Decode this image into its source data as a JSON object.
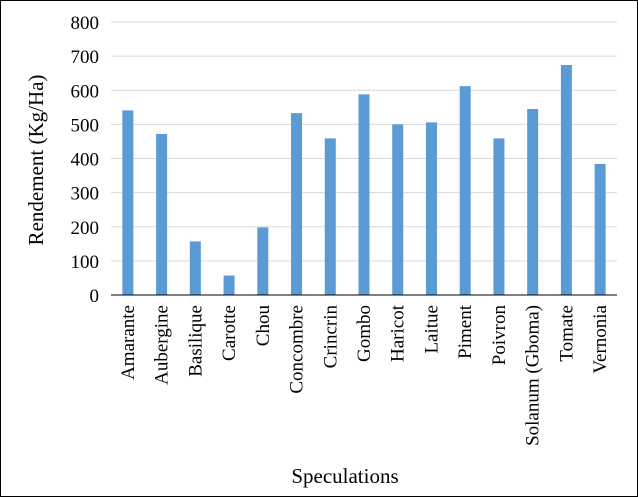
{
  "chart_data": {
    "type": "bar",
    "title": "",
    "xlabel": "Speculations",
    "ylabel": "Rendement (Kg/Ha)",
    "categories": [
      "Amarante",
      "Aubergine",
      "Basilique",
      "Carotte",
      "Chou",
      "Concombre",
      "Crincrin",
      "Gombo",
      "Haricot",
      "Laitue",
      "Piment",
      "Poivron",
      "Solanum (Gboma)",
      "Tomate",
      "Vernonia"
    ],
    "values": [
      541,
      472,
      157,
      57,
      198,
      533,
      459,
      588,
      500,
      506,
      612,
      459,
      545,
      674,
      384
    ],
    "ylim": [
      0,
      800
    ],
    "yticks": [
      0,
      100,
      200,
      300,
      400,
      500,
      600,
      700,
      800
    ],
    "grid": true,
    "legend": "none",
    "bar_color": "#5B9BD5",
    "grid_color": "#D9D9D9",
    "axis_color": "#000000"
  }
}
